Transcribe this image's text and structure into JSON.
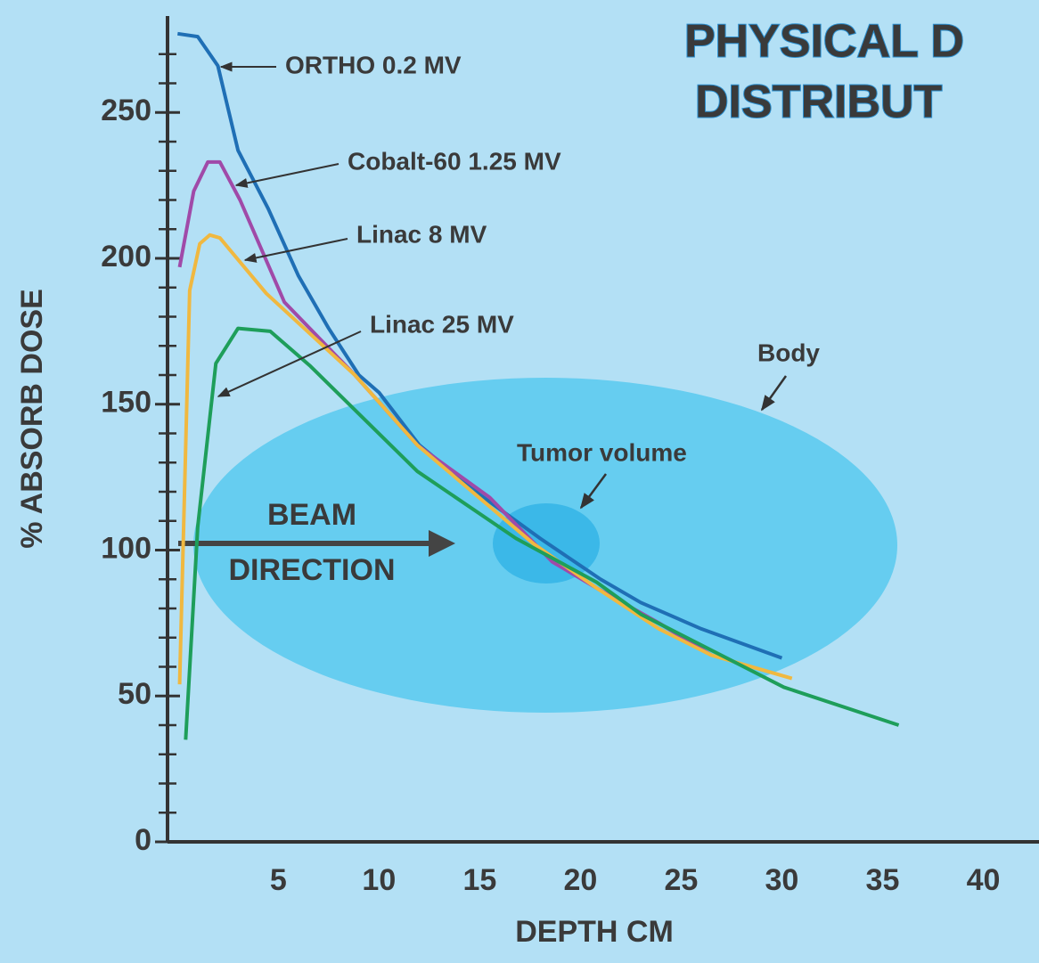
{
  "chart_data": {
    "type": "line",
    "title_lines": [
      "PHYSICAL D",
      "DISTRIBUT"
    ],
    "y_label": "% ABSORB DOSE",
    "x_label": "DEPTH CM",
    "xlim": [
      -0.5,
      42.5
    ],
    "xticks": [
      5,
      10,
      15,
      20,
      25,
      30,
      35,
      40
    ],
    "ylim": [
      0,
      280
    ],
    "yticks": [
      0,
      50,
      100,
      150,
      200,
      250
    ],
    "yminor_ticks": [
      10,
      20,
      30,
      40,
      60,
      70,
      80,
      90,
      110,
      120,
      130,
      140,
      160,
      170,
      180,
      190,
      210,
      220,
      230,
      240,
      260,
      270
    ],
    "series": [
      {
        "name": "ORTHO  0.2 MV",
        "color": "#1f6fb5",
        "x": [
          0,
          1,
          2,
          3,
          4.5,
          6,
          7.5,
          9,
          10,
          12,
          15,
          18,
          21,
          23,
          26,
          30
        ],
        "values": [
          277,
          276,
          266,
          237,
          217,
          194,
          176,
          160,
          154,
          136,
          119,
          104,
          90,
          82,
          73,
          63
        ]
      },
      {
        "name": "Cobalt-60  1.25 MV",
        "color": "#a04aa8",
        "x": [
          0.1,
          0.8,
          1.5,
          2.1,
          3.1,
          5.3,
          8.8,
          11.9,
          15.5,
          18.6,
          20.8,
          23.9,
          26.5
        ],
        "values": [
          197,
          223,
          233,
          233,
          220,
          185,
          160,
          136,
          118,
          96,
          87,
          75,
          64
        ]
      },
      {
        "name": "Linac  8 MV",
        "color": "#f0b840",
        "x": [
          0.1,
          0.6,
          1.1,
          1.6,
          2.1,
          4.4,
          8.8,
          11.9,
          17.7,
          20.8,
          23.9,
          26.5,
          30.5
        ],
        "values": [
          54,
          189,
          205,
          208,
          207,
          188,
          160,
          136,
          102,
          87,
          73,
          64,
          56
        ]
      },
      {
        "name": "Linac  25 MV",
        "color": "#1e9e5a",
        "x": [
          0.4,
          1.0,
          1.9,
          3.0,
          4.6,
          6.6,
          11.9,
          16.8,
          20.8,
          23.0,
          30.1,
          35.8
        ],
        "values": [
          35,
          108,
          164,
          176,
          175,
          163,
          127,
          104,
          89,
          78,
          53,
          40
        ]
      }
    ],
    "annotations": [
      "Body",
      "Tumor volume",
      "BEAM",
      "DIRECTION"
    ]
  }
}
